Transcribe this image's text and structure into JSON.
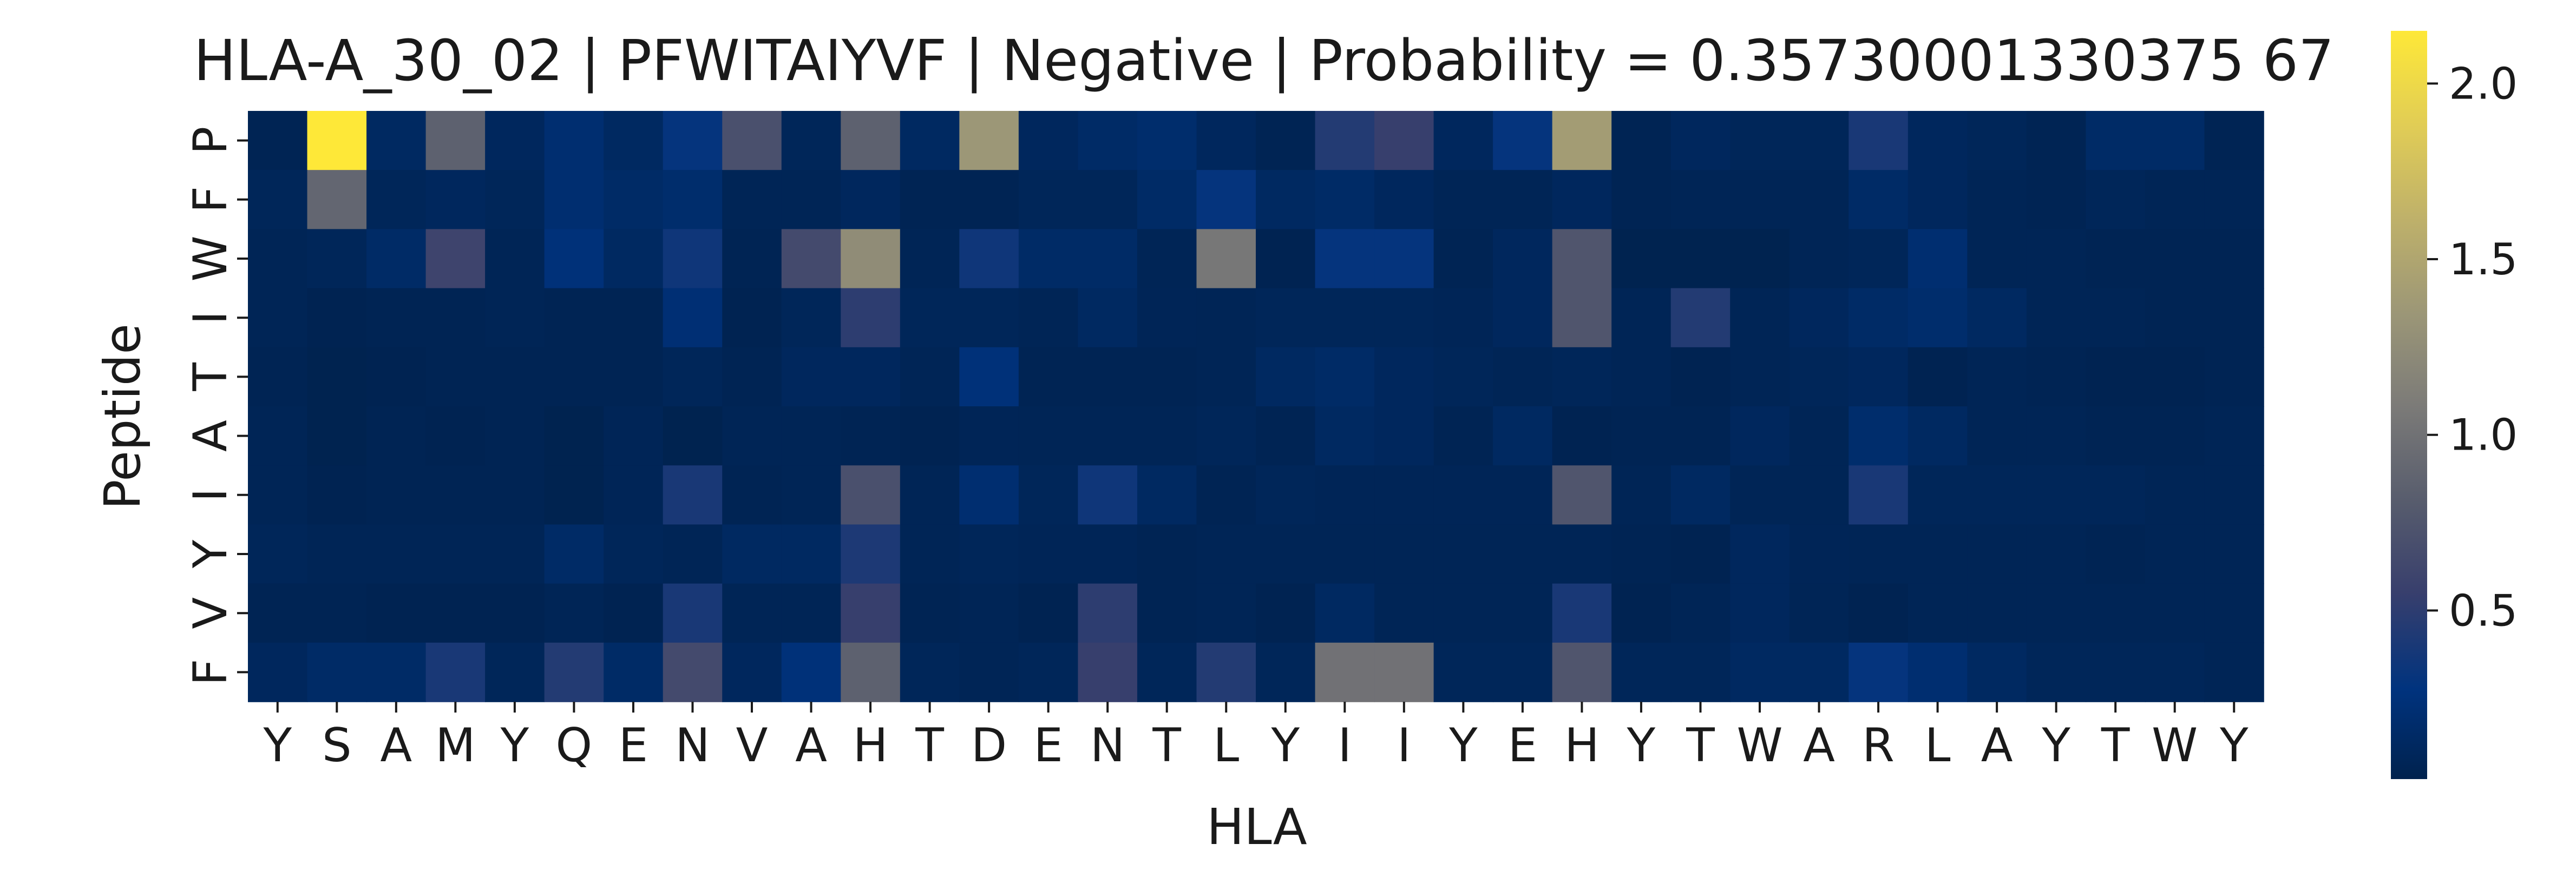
{
  "chart_data": {
    "type": "heatmap",
    "title": "HLA-A_30_02 | PFWITAIYVF | Negative | Probability = 0.35730001330375 67",
    "xlabel": "HLA",
    "ylabel": "Peptide",
    "x_categories": [
      "Y",
      "S",
      "A",
      "M",
      "Y",
      "Q",
      "E",
      "N",
      "V",
      "A",
      "H",
      "T",
      "D",
      "E",
      "N",
      "T",
      "L",
      "Y",
      "I",
      "I",
      "Y",
      "E",
      "H",
      "Y",
      "T",
      "W",
      "A",
      "R",
      "L",
      "A",
      "Y",
      "T",
      "W",
      "Y"
    ],
    "y_categories": [
      "P",
      "F",
      "W",
      "I",
      "T",
      "A",
      "I",
      "Y",
      "V",
      "F"
    ],
    "colormap": "cividis",
    "colorbar": {
      "min": 0.02,
      "max": 2.15,
      "ticks": [
        0.5,
        1.0,
        1.5,
        2.0
      ],
      "tick_labels": [
        "0.5",
        "1.0",
        "1.5",
        "2.0"
      ]
    },
    "values": [
      [
        0.05,
        2.15,
        0.12,
        0.85,
        0.1,
        0.2,
        0.12,
        0.3,
        0.7,
        0.08,
        0.85,
        0.12,
        1.35,
        0.1,
        0.15,
        0.18,
        0.1,
        0.05,
        0.45,
        0.55,
        0.1,
        0.3,
        1.4,
        0.05,
        0.1,
        0.08,
        0.08,
        0.4,
        0.1,
        0.08,
        0.05,
        0.15,
        0.15,
        0.05
      ],
      [
        0.08,
        0.9,
        0.08,
        0.1,
        0.08,
        0.2,
        0.15,
        0.18,
        0.06,
        0.06,
        0.1,
        0.05,
        0.05,
        0.08,
        0.08,
        0.15,
        0.3,
        0.12,
        0.15,
        0.1,
        0.06,
        0.06,
        0.1,
        0.05,
        0.06,
        0.06,
        0.06,
        0.15,
        0.1,
        0.06,
        0.05,
        0.08,
        0.06,
        0.06
      ],
      [
        0.06,
        0.08,
        0.15,
        0.6,
        0.06,
        0.25,
        0.12,
        0.35,
        0.05,
        0.65,
        1.25,
        0.06,
        0.35,
        0.15,
        0.15,
        0.06,
        1.05,
        0.04,
        0.3,
        0.3,
        0.05,
        0.1,
        0.75,
        0.03,
        0.03,
        0.03,
        0.06,
        0.08,
        0.2,
        0.06,
        0.06,
        0.05,
        0.05,
        0.05
      ],
      [
        0.06,
        0.04,
        0.05,
        0.05,
        0.06,
        0.05,
        0.05,
        0.22,
        0.04,
        0.08,
        0.5,
        0.08,
        0.08,
        0.06,
        0.12,
        0.07,
        0.06,
        0.08,
        0.08,
        0.08,
        0.07,
        0.1,
        0.75,
        0.06,
        0.45,
        0.06,
        0.1,
        0.15,
        0.18,
        0.12,
        0.06,
        0.06,
        0.05,
        0.05
      ],
      [
        0.05,
        0.03,
        0.04,
        0.05,
        0.05,
        0.05,
        0.05,
        0.08,
        0.05,
        0.1,
        0.1,
        0.06,
        0.25,
        0.05,
        0.05,
        0.05,
        0.06,
        0.12,
        0.15,
        0.1,
        0.08,
        0.06,
        0.08,
        0.06,
        0.04,
        0.06,
        0.08,
        0.1,
        0.04,
        0.06,
        0.05,
        0.04,
        0.04,
        0.05
      ],
      [
        0.06,
        0.03,
        0.05,
        0.04,
        0.05,
        0.03,
        0.07,
        0.03,
        0.06,
        0.06,
        0.05,
        0.04,
        0.07,
        0.06,
        0.06,
        0.06,
        0.08,
        0.05,
        0.12,
        0.1,
        0.05,
        0.12,
        0.04,
        0.05,
        0.05,
        0.1,
        0.06,
        0.18,
        0.12,
        0.06,
        0.06,
        0.05,
        0.05,
        0.06
      ],
      [
        0.06,
        0.04,
        0.05,
        0.05,
        0.05,
        0.03,
        0.07,
        0.4,
        0.05,
        0.06,
        0.7,
        0.06,
        0.2,
        0.08,
        0.35,
        0.12,
        0.05,
        0.08,
        0.07,
        0.07,
        0.07,
        0.07,
        0.75,
        0.06,
        0.12,
        0.06,
        0.06,
        0.4,
        0.08,
        0.08,
        0.08,
        0.08,
        0.06,
        0.06
      ],
      [
        0.08,
        0.06,
        0.06,
        0.06,
        0.06,
        0.15,
        0.08,
        0.06,
        0.12,
        0.12,
        0.42,
        0.06,
        0.08,
        0.07,
        0.07,
        0.05,
        0.06,
        0.06,
        0.06,
        0.06,
        0.06,
        0.06,
        0.06,
        0.05,
        0.04,
        0.1,
        0.07,
        0.06,
        0.06,
        0.06,
        0.06,
        0.05,
        0.06,
        0.06
      ],
      [
        0.05,
        0.05,
        0.04,
        0.04,
        0.04,
        0.06,
        0.04,
        0.4,
        0.06,
        0.06,
        0.55,
        0.05,
        0.06,
        0.04,
        0.5,
        0.05,
        0.06,
        0.04,
        0.12,
        0.06,
        0.06,
        0.06,
        0.4,
        0.04,
        0.06,
        0.1,
        0.06,
        0.04,
        0.06,
        0.06,
        0.06,
        0.06,
        0.06,
        0.06
      ],
      [
        0.1,
        0.15,
        0.15,
        0.4,
        0.08,
        0.45,
        0.15,
        0.65,
        0.1,
        0.25,
        0.85,
        0.08,
        0.06,
        0.08,
        0.55,
        0.08,
        0.45,
        0.08,
        1.0,
        1.0,
        0.08,
        0.08,
        0.75,
        0.08,
        0.08,
        0.12,
        0.12,
        0.3,
        0.2,
        0.12,
        0.08,
        0.08,
        0.08,
        0.06
      ]
    ]
  }
}
